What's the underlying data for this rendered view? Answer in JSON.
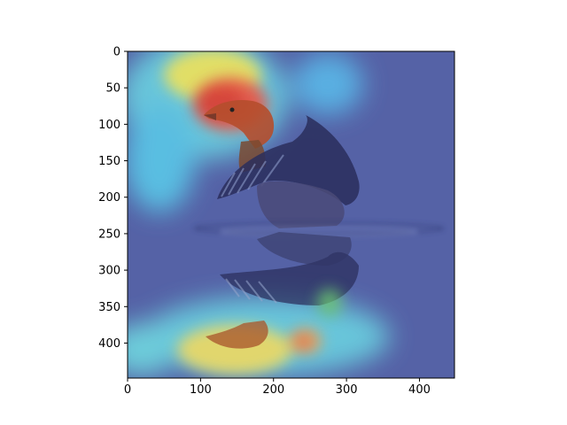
{
  "image": {
    "description_icon": "heatmap-overlay-image",
    "subject": "waterbird-with-reflection",
    "colormap": "jet",
    "overlay_base_color": "#5a66a8"
  },
  "chart_data": {
    "type": "heatmap",
    "title": "",
    "xlabel": "",
    "ylabel": "",
    "xlim": [
      0,
      448
    ],
    "ylim": [
      448,
      0
    ],
    "x_ticks": [
      "0",
      "100",
      "200",
      "300",
      "400"
    ],
    "y_ticks": [
      "0",
      "50",
      "100",
      "150",
      "200",
      "250",
      "300",
      "350",
      "400"
    ],
    "grid": false
  }
}
